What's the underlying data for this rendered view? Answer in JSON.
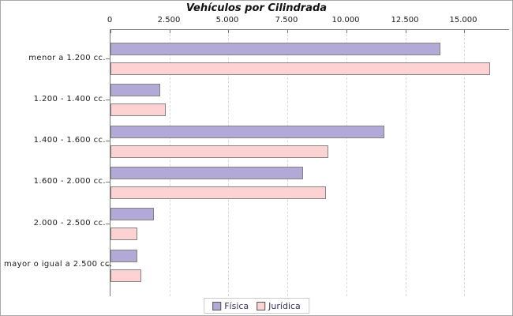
{
  "chart_data": {
    "type": "bar",
    "orientation": "horizontal",
    "title": "Vehículos por Cilindrada",
    "categories": [
      "menor a 1.200 cc.",
      "1.200 - 1.400 cc.",
      "1.400 - 1.600 cc.",
      "1.600 - 2.000 cc.",
      "2.000 - 2.500 cc.",
      "mayor o igual a 2.500 cc."
    ],
    "series": [
      {
        "name": "Física",
        "values": [
          14000,
          2100,
          11600,
          8150,
          1850,
          1150
        ],
        "fill": "#b3a9d6",
        "border": "#838383"
      },
      {
        "name": "Jurídica",
        "values": [
          16100,
          2350,
          9250,
          9150,
          1150,
          1300
        ],
        "fill": "#fdd2d2",
        "border": "#838383"
      }
    ],
    "x_axis": {
      "ticks": [
        0,
        2500,
        5000,
        7500,
        10000,
        12500,
        15000
      ],
      "tick_labels": [
        "0",
        "2.500",
        "5.000",
        "7.500",
        "10.000",
        "12.500",
        "15.000"
      ],
      "max": 16900
    },
    "grid": "vertical-dashed",
    "legend_position": "bottom",
    "colors": {
      "grid": "#d9d9d9",
      "axis": "#7a7a7a",
      "text": "#1a1a1a",
      "legend_text": "#333366",
      "legend_border": "#cccccc",
      "frame_border": "#a9a9a9",
      "background": "#ffffff"
    }
  }
}
